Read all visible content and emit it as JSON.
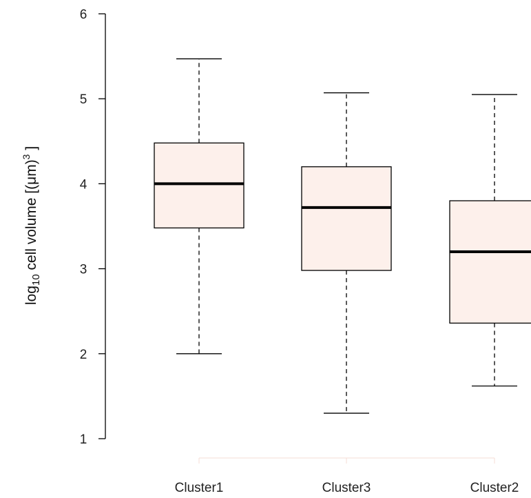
{
  "colors": {
    "box_fill": "#fdf0eb",
    "box_stroke": "#000000",
    "axis": "#000000",
    "bottom_axis_faint": "#f6dcd6"
  },
  "chart_data": {
    "type": "boxplot",
    "title": "",
    "xlabel": "",
    "ylabel": {
      "main": "log",
      "sub": "10",
      "rest": " cell volume  [(μm)",
      "sup": "3",
      "close": " ]"
    },
    "ylim": [
      1,
      6
    ],
    "yticks": [
      "1",
      "2",
      "3",
      "4",
      "5",
      "6"
    ],
    "grid": false,
    "legend": "none",
    "categories": [
      "Cluster1",
      "Cluster3",
      "Cluster2"
    ],
    "boxes": [
      {
        "name": "Cluster1",
        "min": 2.0,
        "q1": 3.48,
        "median": 4.0,
        "q3": 4.48,
        "max": 5.47
      },
      {
        "name": "Cluster3",
        "min": 1.3,
        "q1": 2.98,
        "median": 3.72,
        "q3": 4.2,
        "max": 5.07
      },
      {
        "name": "Cluster2",
        "min": 1.62,
        "q1": 2.36,
        "median": 3.2,
        "q3": 3.8,
        "max": 5.05
      }
    ]
  }
}
